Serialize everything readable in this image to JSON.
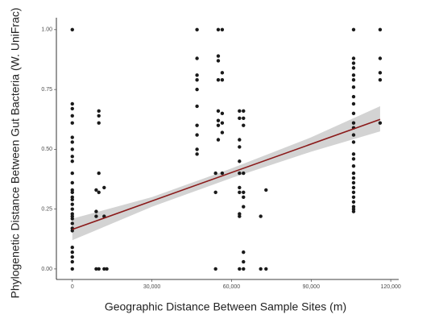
{
  "chart_data": {
    "type": "scatter",
    "x_label": "Geographic Distance Between Sample Sites (m)",
    "y_label": "Phylogenetic Distance Between Gut Bacteria (W. UniFrac)",
    "xlim": [
      -6000,
      123000
    ],
    "ylim": [
      -0.044,
      1.05
    ],
    "xticks": [
      0,
      {
        "value": 30000,
        "label": "30,000"
      },
      {
        "value": 60000,
        "label": "60,000"
      },
      {
        "value": 90000,
        "label": "90,000"
      },
      {
        "value": 120000,
        "label": "120,000"
      }
    ],
    "yticks": [
      {
        "value": 0,
        "label": "0.00"
      },
      {
        "value": 0.25,
        "label": "0.25"
      },
      {
        "value": 0.5,
        "label": "0.50"
      },
      {
        "value": 0.75,
        "label": "0.75"
      },
      {
        "value": 1,
        "label": "1.00"
      }
    ],
    "point_color": "#1a1a1a",
    "x": [
      0,
      0,
      0,
      0,
      0,
      0,
      0,
      0,
      0,
      0,
      0,
      0,
      0,
      0,
      0,
      0,
      0,
      0,
      0,
      0,
      0,
      0,
      0,
      0,
      0,
      0,
      0,
      0,
      0,
      9000,
      9000,
      9000,
      9000,
      10000,
      10000,
      10000,
      10000,
      10000,
      10000,
      12000,
      12000,
      12000,
      13000,
      47000,
      47000,
      47000,
      47000,
      47000,
      47000,
      47000,
      47000,
      47000,
      47000,
      54000,
      54000,
      54000,
      55000,
      55000,
      55000,
      55000,
      55000,
      55000,
      55000,
      55000,
      56500,
      56500,
      56500,
      56500,
      56500,
      56500,
      56500,
      63000,
      63000,
      63000,
      63000,
      63000,
      63000,
      63000,
      63000,
      63000,
      63000,
      63000,
      64500,
      64500,
      64500,
      64500,
      64500,
      64500,
      64500,
      64500,
      64500,
      64500,
      71000,
      71000,
      73000,
      73000,
      106000,
      106000,
      106000,
      106000,
      106000,
      106000,
      106000,
      106000,
      106000,
      106000,
      106000,
      106000,
      106000,
      106000,
      106000,
      106000,
      106000,
      106000,
      106000,
      106000,
      106000,
      106000,
      106000,
      106000,
      106000,
      106000,
      106000,
      116000,
      116000,
      116000,
      116000,
      116000
    ],
    "y": [
      1,
      0.69,
      0.67,
      0.64,
      0.61,
      0.55,
      0.53,
      0.5,
      0.47,
      0.45,
      0.4,
      0.36,
      0.33,
      0.32,
      0.3,
      0.29,
      0.27,
      0.25,
      0.23,
      0.22,
      0.21,
      0.19,
      0.17,
      0.16,
      0.09,
      0.07,
      0.05,
      0.03,
      0,
      0.24,
      0.22,
      0.33,
      0,
      0.66,
      0.64,
      0.61,
      0.4,
      0.32,
      0,
      0.34,
      0.22,
      0,
      0,
      1,
      0.88,
      0.81,
      0.79,
      0.75,
      0.68,
      0.6,
      0.56,
      0.5,
      0.48,
      0.4,
      0.32,
      0,
      1,
      0.89,
      0.87,
      0.79,
      0.66,
      0.62,
      0.6,
      0.54,
      1,
      0.82,
      0.79,
      0.65,
      0.61,
      0.57,
      0.4,
      0.66,
      0.63,
      0.54,
      0.51,
      0.45,
      0.4,
      0.34,
      0.32,
      0.23,
      0.22,
      0,
      0.66,
      0.63,
      0.6,
      0.4,
      0.32,
      0.3,
      0.26,
      0.07,
      0.03,
      0,
      0.22,
      0,
      0.33,
      0,
      1,
      0.88,
      0.86,
      0.84,
      0.81,
      0.79,
      0.76,
      0.72,
      0.69,
      0.65,
      0.61,
      0.59,
      0.56,
      0.53,
      0.48,
      0.46,
      0.43,
      0.4,
      0.38,
      0.36,
      0.34,
      0.32,
      0.3,
      0.28,
      0.26,
      0.25,
      0.24,
      1,
      0.88,
      0.82,
      0.79,
      0.61
    ],
    "fit": {
      "color": "#8b1a1a",
      "x": [
        0,
        116000
      ],
      "y": [
        0.165,
        0.625
      ]
    },
    "confidence_band": {
      "color": "#c8c8c8",
      "x": [
        0,
        30000,
        60000,
        90000,
        116000
      ],
      "lower": [
        0.12,
        0.26,
        0.38,
        0.49,
        0.575
      ],
      "upper": [
        0.21,
        0.3,
        0.42,
        0.55,
        0.68
      ]
    }
  }
}
